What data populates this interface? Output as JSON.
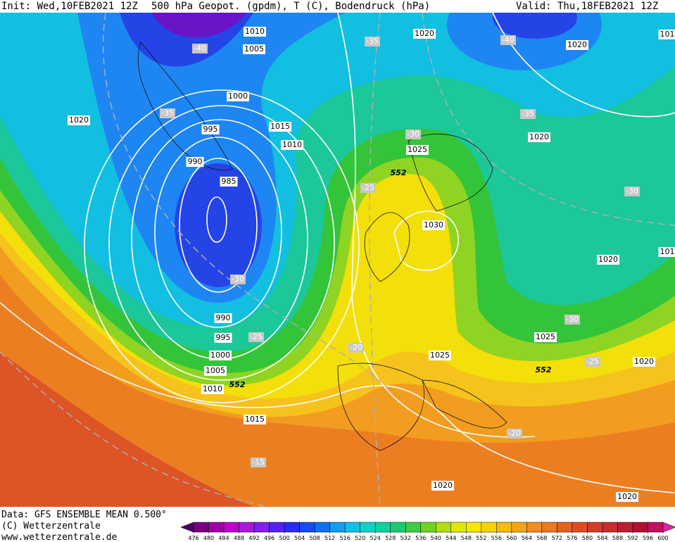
{
  "header": {
    "init": "Init: Wed,10FEB2021 12Z",
    "title": "500 hPa Geopot. (gpdm), T (C), Bodendruck (hPa)",
    "valid": "Valid: Thu,18FEB2021 12Z"
  },
  "map": {
    "isobar_labels": [
      "1010",
      "1005",
      "1000",
      "995",
      "990",
      "985",
      "1020",
      "1015",
      "1010",
      "1020",
      "1020",
      "1020",
      "1025",
      "1030",
      "1020",
      "1025",
      "1025",
      "1020",
      "990",
      "995",
      "1000",
      "1005",
      "1010",
      "1015",
      "1020",
      "1020",
      "101",
      "101"
    ],
    "temperature_labels": [
      "-40",
      "-35",
      "-40",
      "-35",
      "-35",
      "-30",
      "-25",
      "-30",
      "-30",
      "-25",
      "-30",
      "-20",
      "-25",
      "-20",
      "-15"
    ],
    "height_labels": [
      "552",
      "552",
      "552"
    ]
  },
  "footer": {
    "data": "Data: GFS ENSEMBLE MEAN 0.500°",
    "copyright": "(C) Wetterzentrale",
    "url": "www.wetterzentrale.de"
  },
  "colorbar": {
    "ticks": [
      476,
      480,
      484,
      488,
      492,
      496,
      500,
      504,
      508,
      512,
      516,
      520,
      524,
      528,
      532,
      536,
      540,
      544,
      548,
      552,
      556,
      560,
      564,
      568,
      572,
      576,
      580,
      584,
      588,
      592,
      596,
      600
    ]
  }
}
